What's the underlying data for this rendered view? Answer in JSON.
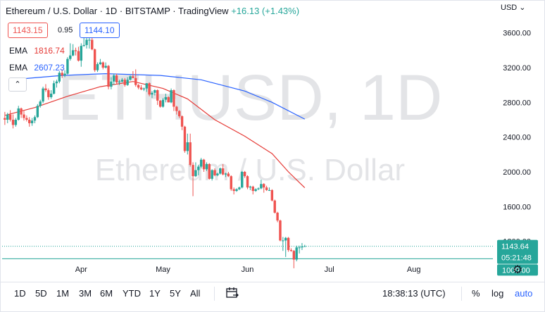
{
  "header": {
    "symbol": "Ethereum / U.S. Dollar",
    "interval": "1D",
    "exchange": "BITSTAMP",
    "source": "TradingView",
    "change": "+16.13 (+1.43%)",
    "sep": "·"
  },
  "price_boxes": {
    "bid": "1143.15",
    "spread": "0.95",
    "ask": "1144.10"
  },
  "emas": [
    {
      "label": "EMA",
      "value": "1816.74",
      "color": "#e53935"
    },
    {
      "label": "EMA",
      "value": "2607.23",
      "color": "#2962ff"
    }
  ],
  "currency": "USD",
  "collapse_icon": "chevron-up-icon",
  "watermark": {
    "line1": "ETHUSD, 1D",
    "line2": "Ethereum / U.S. Dollar"
  },
  "last_price_tag": {
    "price": "1143.64",
    "countdown": "05:21:48"
  },
  "level_tag": "1000.00",
  "colors": {
    "up": "#26a69a",
    "down": "#ef5350",
    "ema_fast": "#e53935",
    "ema_slow": "#2962ff",
    "level": "#26a69a"
  },
  "toolbar": {
    "timeframes": [
      "1D",
      "5D",
      "1M",
      "3M",
      "6M",
      "YTD",
      "1Y",
      "5Y",
      "All"
    ],
    "compare_icon": "calendar-range-icon",
    "clock": "18:38:13 (UTC)",
    "percent": "%",
    "log": "log",
    "auto": "auto"
  },
  "chart_data": {
    "type": "candlestick",
    "title": "Ethereum / U.S. Dollar",
    "x_tick_labels": [
      "Apr",
      "May",
      "Jun",
      "Jul",
      "Aug"
    ],
    "y_tick_labels": [
      "3600.00",
      "3200.00",
      "2800.00",
      "2400.00",
      "2000.00",
      "1600.00",
      "1200.00"
    ],
    "y_ticks": [
      3600,
      3200,
      2800,
      2400,
      2000,
      1600,
      1200
    ],
    "ylim": [
      800,
      3800
    ],
    "x_ticks": [
      "2022-04-01",
      "2022-05-01",
      "2022-06-01",
      "2022-07-01",
      "2022-08-01"
    ],
    "xlim": [
      "2022-03-03",
      "2022-08-30"
    ],
    "horizontal_line": 1000,
    "grid": false,
    "candles": [
      {
        "date": "2022-03-04",
        "o": 2620,
        "h": 2690,
        "l": 2540,
        "c": 2600
      },
      {
        "date": "2022-03-05",
        "o": 2600,
        "h": 2680,
        "l": 2560,
        "c": 2660
      },
      {
        "date": "2022-03-06",
        "o": 2660,
        "h": 2710,
        "l": 2580,
        "c": 2600
      },
      {
        "date": "2022-03-07",
        "o": 2600,
        "h": 2660,
        "l": 2500,
        "c": 2540
      },
      {
        "date": "2022-03-08",
        "o": 2540,
        "h": 2620,
        "l": 2520,
        "c": 2600
      },
      {
        "date": "2022-03-09",
        "o": 2600,
        "h": 2760,
        "l": 2590,
        "c": 2730
      },
      {
        "date": "2022-03-10",
        "o": 2730,
        "h": 2740,
        "l": 2620,
        "c": 2660
      },
      {
        "date": "2022-03-11",
        "o": 2660,
        "h": 2700,
        "l": 2590,
        "c": 2620
      },
      {
        "date": "2022-03-12",
        "o": 2620,
        "h": 2650,
        "l": 2580,
        "c": 2600
      },
      {
        "date": "2022-03-13",
        "o": 2600,
        "h": 2630,
        "l": 2520,
        "c": 2560
      },
      {
        "date": "2022-03-14",
        "o": 2560,
        "h": 2620,
        "l": 2530,
        "c": 2590
      },
      {
        "date": "2022-03-15",
        "o": 2590,
        "h": 2650,
        "l": 2560,
        "c": 2630
      },
      {
        "date": "2022-03-16",
        "o": 2630,
        "h": 2780,
        "l": 2620,
        "c": 2760
      },
      {
        "date": "2022-03-17",
        "o": 2760,
        "h": 2830,
        "l": 2740,
        "c": 2810
      },
      {
        "date": "2022-03-18",
        "o": 2810,
        "h": 2980,
        "l": 2790,
        "c": 2960
      },
      {
        "date": "2022-03-19",
        "o": 2960,
        "h": 3010,
        "l": 2920,
        "c": 2940
      },
      {
        "date": "2022-03-20",
        "o": 2940,
        "h": 2960,
        "l": 2830,
        "c": 2860
      },
      {
        "date": "2022-03-21",
        "o": 2860,
        "h": 2940,
        "l": 2840,
        "c": 2900
      },
      {
        "date": "2022-03-22",
        "o": 2900,
        "h": 3050,
        "l": 2890,
        "c": 3020
      },
      {
        "date": "2022-03-23",
        "o": 3020,
        "h": 3060,
        "l": 2970,
        "c": 3040
      },
      {
        "date": "2022-03-24",
        "o": 3040,
        "h": 3160,
        "l": 3020,
        "c": 3140
      },
      {
        "date": "2022-03-25",
        "o": 3140,
        "h": 3180,
        "l": 3080,
        "c": 3110
      },
      {
        "date": "2022-03-26",
        "o": 3110,
        "h": 3170,
        "l": 3090,
        "c": 3130
      },
      {
        "date": "2022-03-27",
        "o": 3130,
        "h": 3320,
        "l": 3120,
        "c": 3300
      },
      {
        "date": "2022-03-28",
        "o": 3300,
        "h": 3480,
        "l": 3280,
        "c": 3340
      },
      {
        "date": "2022-03-29",
        "o": 3340,
        "h": 3470,
        "l": 3330,
        "c": 3400
      },
      {
        "date": "2022-03-30",
        "o": 3400,
        "h": 3430,
        "l": 3340,
        "c": 3390
      },
      {
        "date": "2022-03-31",
        "o": 3390,
        "h": 3440,
        "l": 3270,
        "c": 3280
      },
      {
        "date": "2022-04-01",
        "o": 3280,
        "h": 3480,
        "l": 3210,
        "c": 3450
      },
      {
        "date": "2022-04-02",
        "o": 3450,
        "h": 3560,
        "l": 3440,
        "c": 3460
      },
      {
        "date": "2022-04-03",
        "o": 3460,
        "h": 3580,
        "l": 3420,
        "c": 3520
      },
      {
        "date": "2022-04-04",
        "o": 3520,
        "h": 3560,
        "l": 3420,
        "c": 3520
      },
      {
        "date": "2022-04-05",
        "o": 3520,
        "h": 3550,
        "l": 3400,
        "c": 3410
      },
      {
        "date": "2022-04-06",
        "o": 3410,
        "h": 3420,
        "l": 3150,
        "c": 3170
      },
      {
        "date": "2022-04-07",
        "o": 3170,
        "h": 3260,
        "l": 3150,
        "c": 3240
      },
      {
        "date": "2022-04-08",
        "o": 3240,
        "h": 3300,
        "l": 3230,
        "c": 3260
      },
      {
        "date": "2022-04-09",
        "o": 3260,
        "h": 3270,
        "l": 3180,
        "c": 3200
      },
      {
        "date": "2022-04-10",
        "o": 3200,
        "h": 3260,
        "l": 3190,
        "c": 3220
      },
      {
        "date": "2022-04-11",
        "o": 3220,
        "h": 3230,
        "l": 2950,
        "c": 2980
      },
      {
        "date": "2022-04-12",
        "o": 2980,
        "h": 3090,
        "l": 2950,
        "c": 3040
      },
      {
        "date": "2022-04-13",
        "o": 3040,
        "h": 3130,
        "l": 3000,
        "c": 3110
      },
      {
        "date": "2022-04-14",
        "o": 3110,
        "h": 3130,
        "l": 3010,
        "c": 3030
      },
      {
        "date": "2022-04-15",
        "o": 3030,
        "h": 3060,
        "l": 3000,
        "c": 3040
      },
      {
        "date": "2022-04-16",
        "o": 3040,
        "h": 3080,
        "l": 3030,
        "c": 3060
      },
      {
        "date": "2022-04-17",
        "o": 3060,
        "h": 3080,
        "l": 2980,
        "c": 3000
      },
      {
        "date": "2022-04-18",
        "o": 3000,
        "h": 3090,
        "l": 2990,
        "c": 3060
      },
      {
        "date": "2022-04-19",
        "o": 3060,
        "h": 3110,
        "l": 3050,
        "c": 3100
      },
      {
        "date": "2022-04-20",
        "o": 3100,
        "h": 3160,
        "l": 3080,
        "c": 3080
      },
      {
        "date": "2022-04-21",
        "o": 3080,
        "h": 3180,
        "l": 2980,
        "c": 3000
      },
      {
        "date": "2022-04-22",
        "o": 3000,
        "h": 3010,
        "l": 2950,
        "c": 2970
      },
      {
        "date": "2022-04-23",
        "o": 2970,
        "h": 3000,
        "l": 2940,
        "c": 2950
      },
      {
        "date": "2022-04-24",
        "o": 2950,
        "h": 2970,
        "l": 2930,
        "c": 2960
      },
      {
        "date": "2022-04-25",
        "o": 2960,
        "h": 3020,
        "l": 2920,
        "c": 3020
      },
      {
        "date": "2022-04-26",
        "o": 3020,
        "h": 3030,
        "l": 2870,
        "c": 2890
      },
      {
        "date": "2022-04-27",
        "o": 2890,
        "h": 2930,
        "l": 2850,
        "c": 2910
      },
      {
        "date": "2022-04-28",
        "o": 2910,
        "h": 2950,
        "l": 2880,
        "c": 2940
      },
      {
        "date": "2022-04-29",
        "o": 2940,
        "h": 2950,
        "l": 2770,
        "c": 2820
      },
      {
        "date": "2022-04-30",
        "o": 2820,
        "h": 2830,
        "l": 2740,
        "c": 2750
      },
      {
        "date": "2022-05-01",
        "o": 2750,
        "h": 2850,
        "l": 2740,
        "c": 2830
      },
      {
        "date": "2022-05-02",
        "o": 2830,
        "h": 2900,
        "l": 2800,
        "c": 2860
      },
      {
        "date": "2022-05-03",
        "o": 2860,
        "h": 2870,
        "l": 2800,
        "c": 2800
      },
      {
        "date": "2022-05-04",
        "o": 2800,
        "h": 2960,
        "l": 2790,
        "c": 2940
      },
      {
        "date": "2022-05-05",
        "o": 2940,
        "h": 2950,
        "l": 2700,
        "c": 2750
      },
      {
        "date": "2022-05-06",
        "o": 2750,
        "h": 2760,
        "l": 2660,
        "c": 2700
      },
      {
        "date": "2022-05-07",
        "o": 2700,
        "h": 2710,
        "l": 2620,
        "c": 2640
      },
      {
        "date": "2022-05-08",
        "o": 2640,
        "h": 2650,
        "l": 2480,
        "c": 2520
      },
      {
        "date": "2022-05-09",
        "o": 2520,
        "h": 2530,
        "l": 2220,
        "c": 2240
      },
      {
        "date": "2022-05-10",
        "o": 2240,
        "h": 2440,
        "l": 2200,
        "c": 2340
      },
      {
        "date": "2022-05-11",
        "o": 2340,
        "h": 2440,
        "l": 2060,
        "c": 2080
      },
      {
        "date": "2022-05-12",
        "o": 2080,
        "h": 2110,
        "l": 1720,
        "c": 1950
      },
      {
        "date": "2022-05-13",
        "o": 1950,
        "h": 2110,
        "l": 1940,
        "c": 2020
      },
      {
        "date": "2022-05-14",
        "o": 2020,
        "h": 2080,
        "l": 1960,
        "c": 2060
      },
      {
        "date": "2022-05-15",
        "o": 2060,
        "h": 2160,
        "l": 2040,
        "c": 2140
      },
      {
        "date": "2022-05-16",
        "o": 2140,
        "h": 2150,
        "l": 2000,
        "c": 2030
      },
      {
        "date": "2022-05-17",
        "o": 2030,
        "h": 2110,
        "l": 2010,
        "c": 2090
      },
      {
        "date": "2022-05-18",
        "o": 2090,
        "h": 2100,
        "l": 1910,
        "c": 1920
      },
      {
        "date": "2022-05-19",
        "o": 1920,
        "h": 2030,
        "l": 1900,
        "c": 2020
      },
      {
        "date": "2022-05-20",
        "o": 2020,
        "h": 2040,
        "l": 1950,
        "c": 1960
      },
      {
        "date": "2022-05-21",
        "o": 1960,
        "h": 1990,
        "l": 1950,
        "c": 1980
      },
      {
        "date": "2022-05-22",
        "o": 1980,
        "h": 2050,
        "l": 1970,
        "c": 2040
      },
      {
        "date": "2022-05-23",
        "o": 2040,
        "h": 2090,
        "l": 1960,
        "c": 1970
      },
      {
        "date": "2022-05-24",
        "o": 1970,
        "h": 1990,
        "l": 1940,
        "c": 1980
      },
      {
        "date": "2022-05-25",
        "o": 1980,
        "h": 2000,
        "l": 1940,
        "c": 1950
      },
      {
        "date": "2022-05-26",
        "o": 1950,
        "h": 1960,
        "l": 1780,
        "c": 1800
      },
      {
        "date": "2022-05-27",
        "o": 1800,
        "h": 1820,
        "l": 1740,
        "c": 1780
      },
      {
        "date": "2022-05-28",
        "o": 1780,
        "h": 1810,
        "l": 1770,
        "c": 1800
      },
      {
        "date": "2022-05-29",
        "o": 1800,
        "h": 1830,
        "l": 1790,
        "c": 1820
      },
      {
        "date": "2022-05-30",
        "o": 1820,
        "h": 2010,
        "l": 1810,
        "c": 2000
      },
      {
        "date": "2022-05-31",
        "o": 2000,
        "h": 2010,
        "l": 1930,
        "c": 1950
      },
      {
        "date": "2022-06-01",
        "o": 1950,
        "h": 1960,
        "l": 1800,
        "c": 1820
      },
      {
        "date": "2022-06-02",
        "o": 1820,
        "h": 1840,
        "l": 1790,
        "c": 1830
      },
      {
        "date": "2022-06-03",
        "o": 1830,
        "h": 1840,
        "l": 1740,
        "c": 1780
      },
      {
        "date": "2022-06-04",
        "o": 1780,
        "h": 1810,
        "l": 1770,
        "c": 1800
      },
      {
        "date": "2022-06-05",
        "o": 1800,
        "h": 1820,
        "l": 1790,
        "c": 1810
      },
      {
        "date": "2022-06-06",
        "o": 1810,
        "h": 1910,
        "l": 1800,
        "c": 1860
      },
      {
        "date": "2022-06-07",
        "o": 1860,
        "h": 1870,
        "l": 1760,
        "c": 1820
      },
      {
        "date": "2022-06-08",
        "o": 1820,
        "h": 1840,
        "l": 1780,
        "c": 1790
      },
      {
        "date": "2022-06-09",
        "o": 1790,
        "h": 1820,
        "l": 1780,
        "c": 1790
      },
      {
        "date": "2022-06-10",
        "o": 1790,
        "h": 1800,
        "l": 1660,
        "c": 1670
      },
      {
        "date": "2022-06-11",
        "o": 1670,
        "h": 1680,
        "l": 1520,
        "c": 1530
      },
      {
        "date": "2022-06-12",
        "o": 1530,
        "h": 1540,
        "l": 1420,
        "c": 1440
      },
      {
        "date": "2022-06-13",
        "o": 1440,
        "h": 1450,
        "l": 1200,
        "c": 1210
      },
      {
        "date": "2022-06-14",
        "o": 1210,
        "h": 1250,
        "l": 1090,
        "c": 1210
      },
      {
        "date": "2022-06-15",
        "o": 1210,
        "h": 1250,
        "l": 1020,
        "c": 1240
      },
      {
        "date": "2022-06-16",
        "o": 1240,
        "h": 1250,
        "l": 1080,
        "c": 1100
      },
      {
        "date": "2022-06-17",
        "o": 1100,
        "h": 1120,
        "l": 1080,
        "c": 1090
      },
      {
        "date": "2022-06-18",
        "o": 1090,
        "h": 1100,
        "l": 890,
        "c": 990
      },
      {
        "date": "2022-06-19",
        "o": 990,
        "h": 1150,
        "l": 970,
        "c": 1130
      },
      {
        "date": "2022-06-20",
        "o": 1130,
        "h": 1150,
        "l": 1060,
        "c": 1130
      },
      {
        "date": "2022-06-21",
        "o": 1130,
        "h": 1180,
        "l": 1100,
        "c": 1140
      },
      {
        "date": "2022-06-22",
        "o": 1140,
        "h": 1160,
        "l": 1140,
        "c": 1144
      }
    ],
    "ema_fast": {
      "label": "EMA 1816.74",
      "points": [
        {
          "date": "2022-03-04",
          "y": 2650
        },
        {
          "date": "2022-03-15",
          "y": 2740
        },
        {
          "date": "2022-03-27",
          "y": 2870
        },
        {
          "date": "2022-04-08",
          "y": 2980
        },
        {
          "date": "2022-04-20",
          "y": 3040
        },
        {
          "date": "2022-05-01",
          "y": 2960
        },
        {
          "date": "2022-05-10",
          "y": 2840
        },
        {
          "date": "2022-05-20",
          "y": 2600
        },
        {
          "date": "2022-05-31",
          "y": 2410
        },
        {
          "date": "2022-06-10",
          "y": 2210
        },
        {
          "date": "2022-06-16",
          "y": 2000
        },
        {
          "date": "2022-06-22",
          "y": 1817
        }
      ]
    },
    "ema_slow": {
      "label": "EMA 2607.23",
      "points": [
        {
          "date": "2022-03-10",
          "y": 3070
        },
        {
          "date": "2022-03-25",
          "y": 3110
        },
        {
          "date": "2022-04-10",
          "y": 3130
        },
        {
          "date": "2022-04-30",
          "y": 3110
        },
        {
          "date": "2022-05-15",
          "y": 3060
        },
        {
          "date": "2022-05-31",
          "y": 2930
        },
        {
          "date": "2022-06-10",
          "y": 2800
        },
        {
          "date": "2022-06-22",
          "y": 2607
        }
      ]
    }
  }
}
